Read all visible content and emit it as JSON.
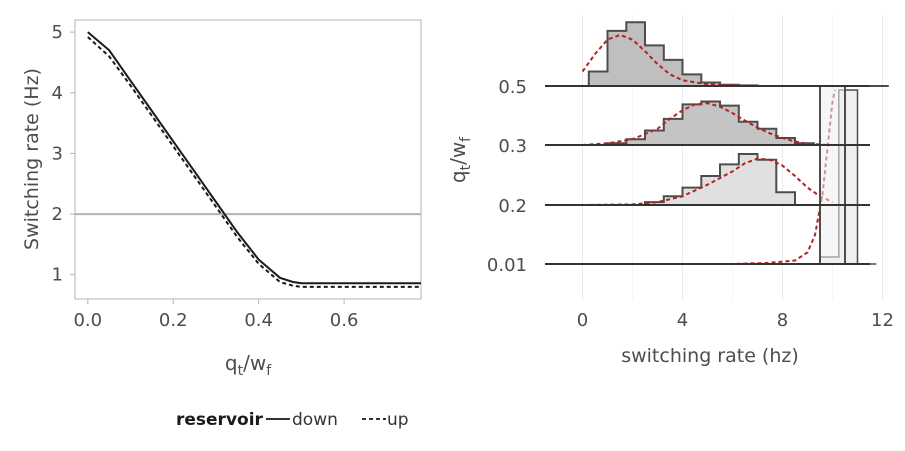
{
  "chart_data": [
    {
      "type": "line",
      "xlabel_main": "q",
      "xlabel_sub1": "t",
      "xlabel_slash": "/w",
      "xlabel_sub2": "f",
      "ylabel": "Switching rate (Hz)",
      "xlim": [
        -0.03,
        0.78
      ],
      "ylim": [
        0.6,
        5.2
      ],
      "xticks": [
        0.0,
        0.2,
        0.4,
        0.6
      ],
      "xtick_labels": [
        "0.0",
        "0.2",
        "0.4",
        "0.6"
      ],
      "yticks": [
        1,
        2,
        3,
        4,
        5
      ],
      "ytick_labels": [
        "1",
        "2",
        "3",
        "4",
        "5"
      ],
      "reference_line": 2,
      "series": [
        {
          "name": "down",
          "dash": "solid",
          "x": [
            0.0,
            0.05,
            0.1,
            0.15,
            0.2,
            0.25,
            0.3,
            0.35,
            0.4,
            0.45,
            0.48,
            0.5,
            0.55,
            0.6,
            0.7,
            0.78
          ],
          "y": [
            5.0,
            4.7,
            4.2,
            3.7,
            3.2,
            2.7,
            2.2,
            1.7,
            1.25,
            0.95,
            0.88,
            0.86,
            0.86,
            0.86,
            0.86,
            0.86
          ]
        },
        {
          "name": "up",
          "dash": "dashed",
          "x": [
            0.0,
            0.05,
            0.1,
            0.15,
            0.2,
            0.25,
            0.3,
            0.35,
            0.4,
            0.45,
            0.48,
            0.5,
            0.55,
            0.6,
            0.7,
            0.78
          ],
          "y": [
            4.92,
            4.6,
            4.12,
            3.62,
            3.12,
            2.62,
            2.12,
            1.62,
            1.18,
            0.88,
            0.82,
            0.8,
            0.8,
            0.8,
            0.8,
            0.8
          ]
        }
      ],
      "legend": {
        "title": "reservoir",
        "entries": [
          "down",
          "up"
        ],
        "position": "bottom"
      }
    },
    {
      "type": "histogram-ridgeline",
      "xlabel": "switching rate (hz)",
      "ylabel_main": "q",
      "ylabel_sub1": "t",
      "ylabel_slash": "/w",
      "ylabel_sub2": "f",
      "xlim": [
        -1.5,
        12.5
      ],
      "xticks": [
        0,
        4,
        8,
        12
      ],
      "xtick_labels": [
        "0",
        "4",
        "8",
        "12"
      ],
      "bin_width": 0.75,
      "fill_dark": "#bfbfbf",
      "fill_light": "#e0e0e0",
      "fill_lightest": "#efefef",
      "density_color": "#b22222",
      "rows": [
        {
          "label": "0.5",
          "fill": "#bfbfbf",
          "baseline_range": [
            -1.5,
            11.5
          ],
          "bin_start": -0.5,
          "counts": [
            0.0,
            0.25,
            0.95,
            1.1,
            0.7,
            0.45,
            0.2,
            0.06,
            0.02,
            0.01,
            0.0,
            0.0,
            0.0,
            0.0,
            0.0,
            0.0,
            0.0
          ],
          "density_x": [
            0,
            0.5,
            1,
            1.5,
            2,
            2.5,
            3,
            3.5,
            4,
            5,
            6,
            7,
            8,
            9,
            10
          ],
          "density_y": [
            0.25,
            0.55,
            0.8,
            0.88,
            0.8,
            0.6,
            0.38,
            0.2,
            0.1,
            0.03,
            0.01,
            0.0,
            0.0,
            0.0,
            0.0
          ]
        },
        {
          "label": "0.3",
          "fill": "#c4c4c4",
          "baseline_range": [
            -1.5,
            11.5
          ],
          "bin_start": 0.25,
          "counts": [
            0.0,
            0.03,
            0.1,
            0.25,
            0.45,
            0.7,
            0.75,
            0.68,
            0.4,
            0.28,
            0.12,
            0.03,
            0.0
          ],
          "density_x": [
            0,
            1,
            2,
            3,
            3.5,
            4,
            4.5,
            5,
            5.5,
            6,
            6.5,
            7,
            7.5,
            8,
            8.5,
            9,
            10
          ],
          "density_y": [
            0.0,
            0.03,
            0.1,
            0.28,
            0.45,
            0.6,
            0.7,
            0.72,
            0.66,
            0.55,
            0.42,
            0.3,
            0.2,
            0.12,
            0.06,
            0.02,
            0.0
          ]
        },
        {
          "label": "0.2",
          "fill": "#e0e0e0",
          "baseline_range": [
            -1.5,
            11.5
          ],
          "bin_start": 2.5,
          "counts": [
            0.05,
            0.15,
            0.3,
            0.5,
            0.7,
            0.88,
            0.78,
            0.22,
            0.0,
            0.0
          ],
          "density_x": [
            0,
            2,
            3,
            4,
            5,
            6,
            6.5,
            7,
            7.5,
            8,
            8.5,
            9,
            9.5,
            10
          ],
          "density_y": [
            0.0,
            0.01,
            0.05,
            0.15,
            0.35,
            0.58,
            0.72,
            0.8,
            0.78,
            0.68,
            0.5,
            0.3,
            0.15,
            0.05
          ]
        },
        {
          "label": "0.01",
          "fill": "#efefef",
          "baseline_range": [
            -1.5,
            11.5
          ],
          "bin_start": 8.75,
          "counts": [
            0.0,
            0.12,
            3.0,
            0.0
          ],
          "density_x": [
            0,
            6,
            7.5,
            8.5,
            9,
            9.3,
            9.6,
            9.8,
            10.0,
            10.1
          ],
          "density_y": [
            0.0,
            0.0,
            0.02,
            0.06,
            0.2,
            0.5,
            1.2,
            2.0,
            2.8,
            3.0
          ]
        }
      ],
      "overlay_bar": {
        "x0": 9.5,
        "x1": 10.5,
        "fill": "#efefef"
      }
    }
  ],
  "legend": {
    "title": "reservoir",
    "down_label": "down",
    "up_label": "up"
  }
}
